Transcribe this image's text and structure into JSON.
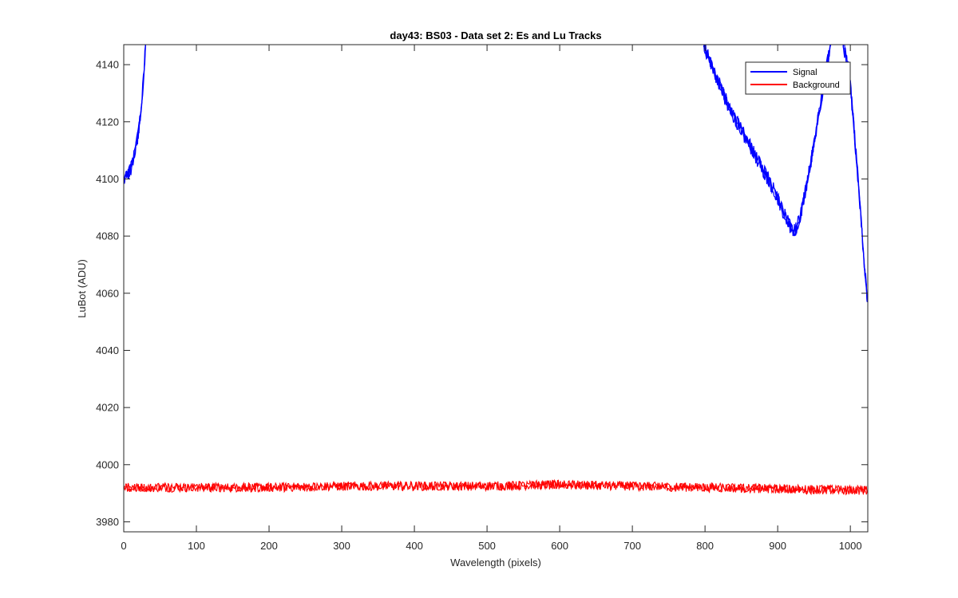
{
  "chart_data": {
    "type": "line",
    "title": "day43: BS03 - Data set 2: Es and Lu Tracks",
    "xlabel": "Wavelength (pixels)",
    "ylabel": "LuBot (ADU)",
    "xlim": [
      0,
      1024
    ],
    "ylim": [
      3976.5,
      4147
    ],
    "xticks": [
      0,
      100,
      200,
      300,
      400,
      500,
      600,
      700,
      800,
      900,
      1000
    ],
    "yticks": [
      3980,
      4000,
      4020,
      4040,
      4060,
      4080,
      4100,
      4120,
      4140
    ],
    "grid": false,
    "legend_position": "top-right",
    "series": [
      {
        "name": "Signal",
        "color": "#0000ff",
        "noise": 2.5,
        "points": [
          [
            0,
            4099
          ],
          [
            5,
            4101
          ],
          [
            10,
            4104
          ],
          [
            15,
            4109
          ],
          [
            20,
            4116
          ],
          [
            25,
            4128
          ],
          [
            28,
            4138
          ],
          [
            30,
            4147
          ],
          null,
          [
            798,
            4147
          ],
          [
            810,
            4139
          ],
          [
            820,
            4133
          ],
          [
            835,
            4124
          ],
          [
            850,
            4117
          ],
          [
            865,
            4110
          ],
          [
            880,
            4103
          ],
          [
            895,
            4096
          ],
          [
            905,
            4090
          ],
          [
            912,
            4086
          ],
          [
            918,
            4083
          ],
          [
            922,
            4082
          ],
          [
            926,
            4083
          ],
          [
            932,
            4088
          ],
          [
            940,
            4098
          ],
          [
            950,
            4112
          ],
          [
            960,
            4128
          ],
          [
            968,
            4140
          ],
          [
            973,
            4147
          ],
          null,
          [
            990,
            4147
          ],
          [
            998,
            4138
          ],
          [
            1005,
            4118
          ],
          [
            1012,
            4095
          ],
          [
            1018,
            4074
          ],
          [
            1022,
            4062
          ],
          [
            1024,
            4057
          ]
        ]
      },
      {
        "name": "Background",
        "color": "#ff0000",
        "noise": 1.6,
        "points": [
          [
            0,
            3992
          ],
          [
            200,
            3992
          ],
          [
            300,
            3992.5
          ],
          [
            500,
            3992.5
          ],
          [
            600,
            3993
          ],
          [
            700,
            3992.5
          ],
          [
            800,
            3992
          ],
          [
            900,
            3991.5
          ],
          [
            1024,
            3991
          ]
        ]
      }
    ]
  }
}
